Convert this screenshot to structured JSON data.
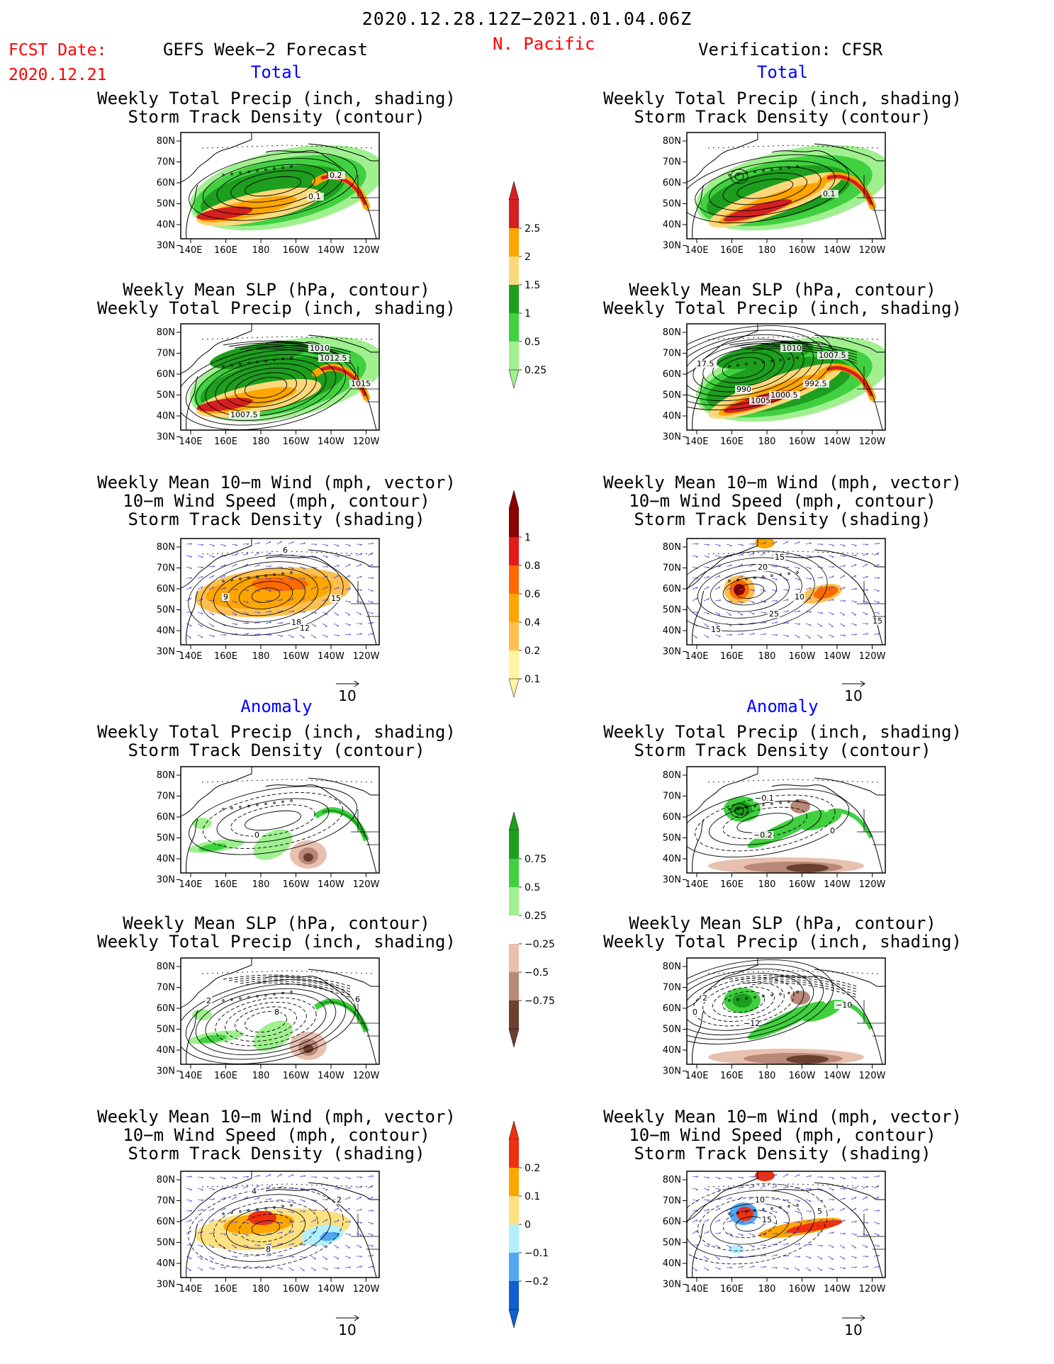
{
  "header": {
    "date_range": "2020.12.28.12Z−2021.01.04.06Z",
    "fcst_label": "FCST Date:",
    "fcst_date": "2020.12.21",
    "forecast_title": "GEFS Week−2 Forecast",
    "region": "N. Pacific",
    "verification_title": "Verification: CFSR"
  },
  "sections": {
    "total": "Total",
    "anomaly": "Anomaly"
  },
  "panel_titles": {
    "precip_track": [
      "Weekly Total Precip (inch, shading)",
      "Storm Track Density (contour)"
    ],
    "slp_precip": [
      "Weekly Mean SLP (hPa, contour)",
      "Weekly Total Precip (inch, shading)"
    ],
    "wind_track": [
      "Weekly Mean 10−m Wind (mph, vector)",
      "10−m Wind Speed (mph, contour)",
      "Storm Track Density (shading)"
    ]
  },
  "axes": {
    "lat_labels": [
      "80N",
      "70N",
      "60N",
      "50N",
      "40N",
      "30N"
    ],
    "lon_labels": [
      "140E",
      "160E",
      "180",
      "160W",
      "140W",
      "120W"
    ]
  },
  "vector_reference": "10",
  "contour_labels": {
    "f1": [
      "0.2",
      "0.1"
    ],
    "v1": [
      "0.1"
    ],
    "f2": [
      "1010",
      "1012.5",
      "1015",
      "1007.5"
    ],
    "v2": [
      "1010",
      "1007.5",
      "17.5",
      "990",
      "1005",
      "1000.5",
      "992.5"
    ],
    "f3": [
      "6",
      "9",
      "15",
      "18",
      "12"
    ],
    "v3": [
      "15",
      "20",
      "10",
      "25",
      "15",
      "15"
    ],
    "f4": [
      "0"
    ],
    "v4": [
      "−0.1",
      "−0.2",
      "0"
    ],
    "f5": [
      "2",
      "6",
      "8"
    ],
    "v5": [
      "2",
      "−10",
      "−12",
      "0"
    ],
    "f6": [
      "4",
      "2",
      "8"
    ],
    "v6": [
      "10",
      "15",
      "5"
    ]
  },
  "colorbars": {
    "precip_total": {
      "labels": [
        "2.5",
        "2",
        "1.5",
        "1",
        "0.5",
        "0.25"
      ],
      "colors": [
        "#d42020",
        "#ffa500",
        "#fdd87a",
        "#1e9e1e",
        "#40d040",
        "#a0f090"
      ]
    },
    "track_total": {
      "labels": [
        "1",
        "0.8",
        "0.6",
        "0.4",
        "0.2",
        "0.1"
      ],
      "colors": [
        "#8b0000",
        "#e41a1c",
        "#ff6a00",
        "#ffa500",
        "#fdc050",
        "#fff4a0"
      ]
    },
    "precip_anom": {
      "labels": [
        "0.75",
        "0.5",
        "0.25",
        "−0.25",
        "−0.5",
        "−0.75"
      ],
      "colors": [
        "#1e9e1e",
        "#40d040",
        "#a0f090",
        "#ffffff",
        "#e8c0b0",
        "#b88878",
        "#6b4030"
      ]
    },
    "track_anom": {
      "labels": [
        "0.2",
        "0.1",
        "0",
        "−0.1",
        "−0.2"
      ],
      "colors": [
        "#ee3010",
        "#ffa500",
        "#fde080",
        "#b0f0ff",
        "#50a8f0",
        "#1060d0"
      ]
    }
  },
  "colors": {
    "title_red": "#ff0000",
    "section_blue": "#0000ff",
    "vector_blue": "#4a4ae0",
    "land_outline": "#000000"
  }
}
